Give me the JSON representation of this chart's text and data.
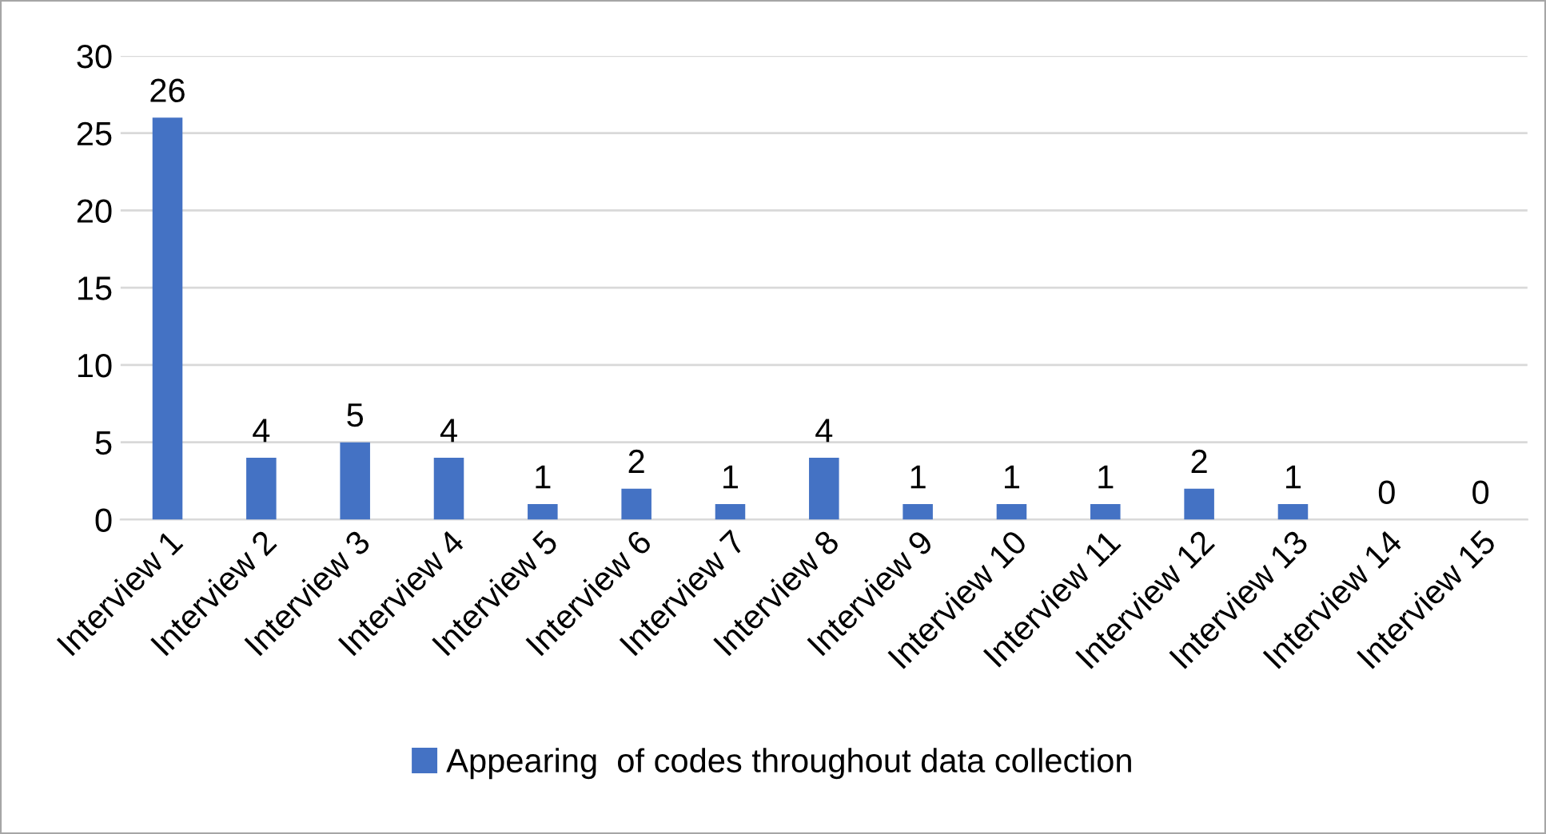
{
  "chart_data": {
    "type": "bar",
    "categories": [
      "Interview 1",
      "Interview 2",
      "Interview 3",
      "Interview 4",
      "Interview 5",
      "Interview 6",
      "Interview 7",
      "Interview 8",
      "Interview 9",
      "Interview 10",
      "Interview 11",
      "Interview 12",
      "Interview 13",
      "Interview 14",
      "Interview 15"
    ],
    "series": [
      {
        "name": "Appearing  of codes throughout data collection",
        "color": "#4472c4",
        "values": [
          26,
          4,
          5,
          4,
          1,
          2,
          1,
          4,
          1,
          1,
          1,
          2,
          1,
          0,
          0
        ]
      }
    ],
    "ylim": [
      0,
      30
    ],
    "yticks": [
      0,
      5,
      10,
      15,
      20,
      25,
      30
    ],
    "grid": "y",
    "legend": "bottom",
    "data_labels": true
  }
}
